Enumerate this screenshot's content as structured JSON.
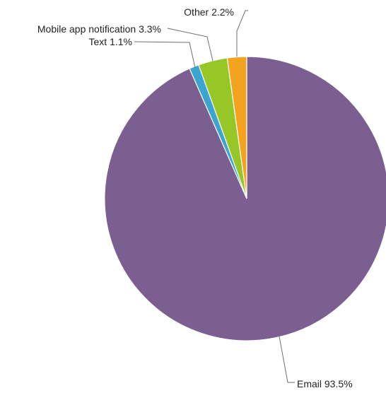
{
  "chart_data": {
    "type": "pie",
    "title": "",
    "start": "12 o'clock",
    "direction": "clockwise",
    "slices": [
      {
        "label": "Email",
        "value": 93.5,
        "value_label": "93.5%",
        "color": "#7b5f91"
      },
      {
        "label": "Text",
        "value": 1.1,
        "value_label": "1.1%",
        "color": "#3aa6cf"
      },
      {
        "label": "Mobile app notification",
        "value": 3.3,
        "value_label": "3.3%",
        "color": "#96c726"
      },
      {
        "label": "Other",
        "value": 2.2,
        "value_label": "2.2%",
        "color": "#f4a31e"
      }
    ]
  }
}
